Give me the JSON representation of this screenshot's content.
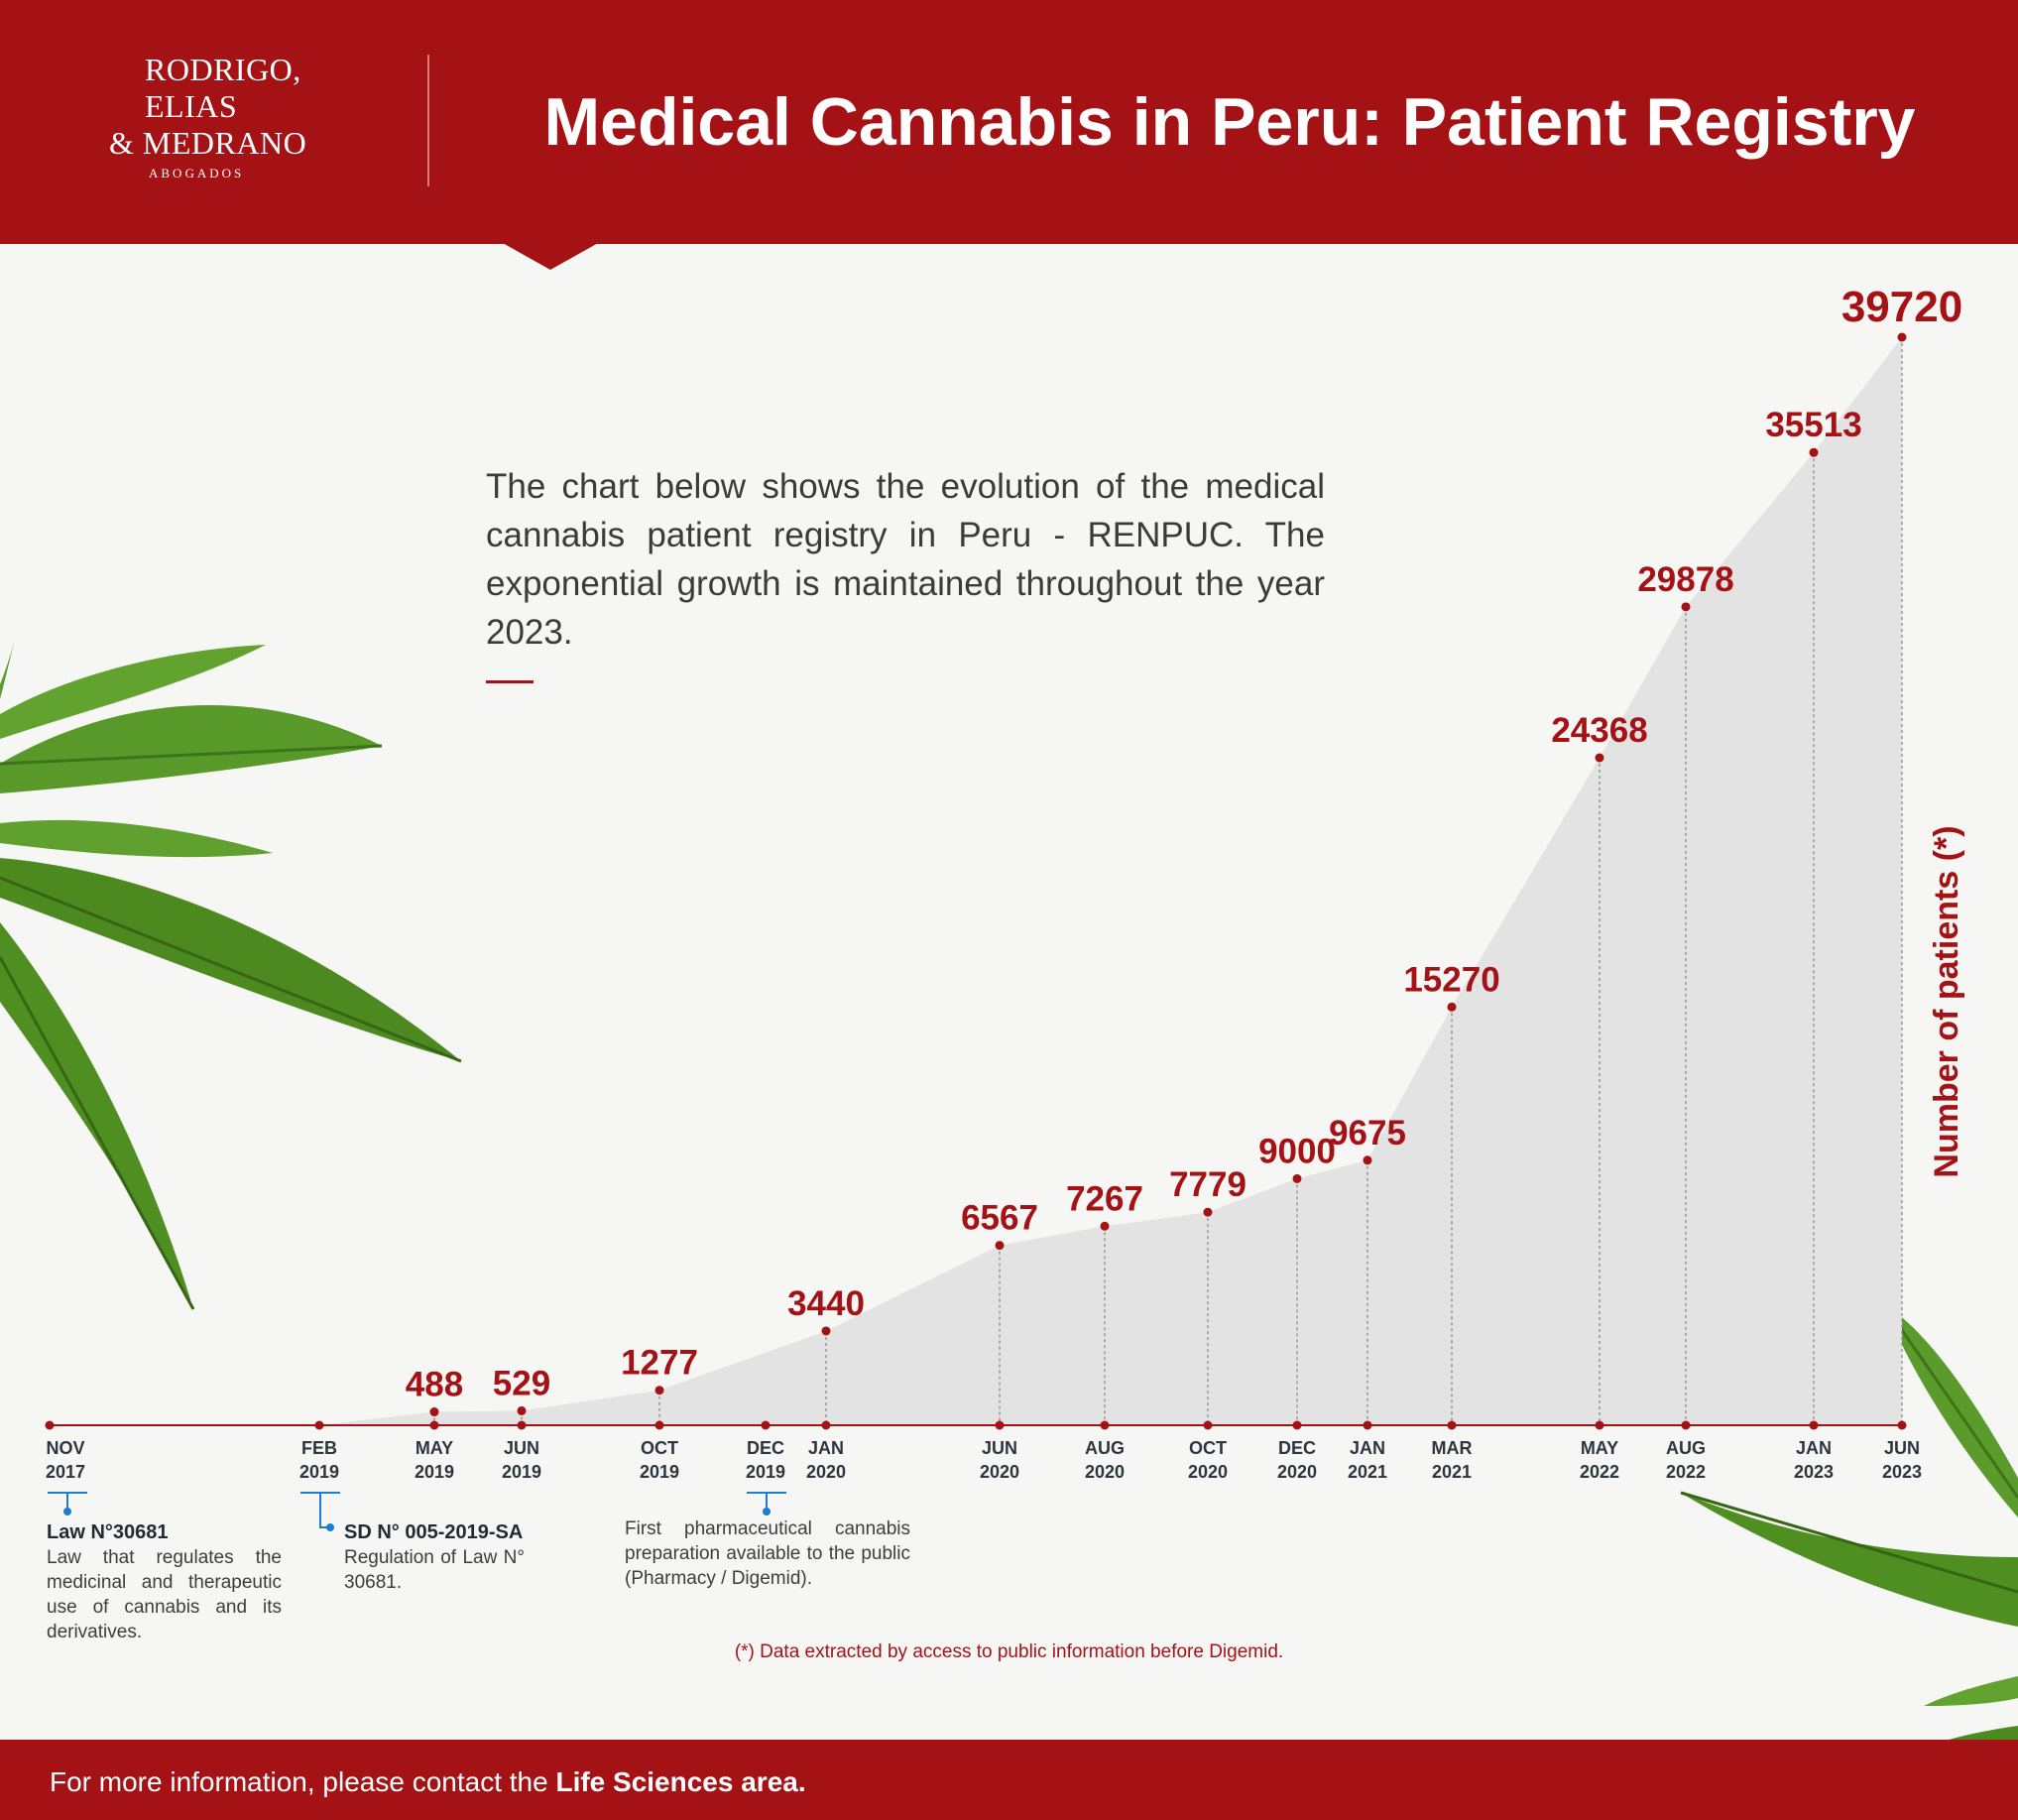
{
  "header": {
    "logo": {
      "line1": "RODRIGO,",
      "line2": "ELIAS",
      "line3": "& MEDRANO",
      "sub": "ABOGADOS"
    },
    "title": "Medical Cannabis in Peru: Patient Registry"
  },
  "intro_text": "The chart below shows the evolution of the medical cannabis patient registry in Peru - RENPUC. The exponential growth is maintained throughout the year 2023.",
  "colors": {
    "brand_red": "#a51215",
    "area_fill": "#e3e3e3",
    "event_blue": "#1a7fd0",
    "leaf_green": "#4f8f22"
  },
  "chart_data": {
    "type": "area",
    "ylabel": "Number of patients (*)",
    "x_axis_ticks": [
      {
        "month": "NOV",
        "year": "2017"
      },
      {
        "month": "FEB",
        "year": "2019"
      },
      {
        "month": "MAY",
        "year": "2019"
      },
      {
        "month": "JUN",
        "year": "2019"
      },
      {
        "month": "OCT",
        "year": "2019"
      },
      {
        "month": "DEC",
        "year": "2019"
      },
      {
        "month": "JAN",
        "year": "2020"
      },
      {
        "month": "JUN",
        "year": "2020"
      },
      {
        "month": "AUG",
        "year": "2020"
      },
      {
        "month": "OCT",
        "year": "2020"
      },
      {
        "month": "DEC",
        "year": "2020"
      },
      {
        "month": "JAN",
        "year": "2021"
      },
      {
        "month": "MAR",
        "year": "2021"
      },
      {
        "month": "MAY",
        "year": "2022"
      },
      {
        "month": "AUG",
        "year": "2022"
      },
      {
        "month": "JAN",
        "year": "2023"
      },
      {
        "month": "JUN",
        "year": "2023"
      }
    ],
    "series": [
      {
        "points": [
          {
            "date": "2019-02",
            "value": 0
          },
          {
            "date": "2019-05",
            "value": 488,
            "label": "488"
          },
          {
            "date": "2019-06",
            "value": 529,
            "label": "529"
          },
          {
            "date": "2019-10",
            "value": 1277,
            "label": "1277"
          },
          {
            "date": "2020-01",
            "value": 3440,
            "label": "3440"
          },
          {
            "date": "2020-06",
            "value": 6567,
            "label": "6567"
          },
          {
            "date": "2020-08",
            "value": 7267,
            "label": "7267"
          },
          {
            "date": "2020-10",
            "value": 7779,
            "label": "7779"
          },
          {
            "date": "2020-12",
            "value": 9000,
            "label": "9000"
          },
          {
            "date": "2021-01",
            "value": 9675,
            "label": "9675"
          },
          {
            "date": "2021-03",
            "value": 15270,
            "label": "15270"
          },
          {
            "date": "2022-05",
            "value": 24368,
            "label": "24368"
          },
          {
            "date": "2022-08",
            "value": 29878,
            "label": "29878"
          },
          {
            "date": "2023-01",
            "value": 35513,
            "label": "35513"
          },
          {
            "date": "2023-06",
            "value": 39720,
            "label": "39720"
          }
        ]
      }
    ],
    "annotations": [
      {
        "date": "NOV 2017",
        "title": "Law N°30681",
        "text": "Law that regulates the medicinal and therapeutic use of cannabis and its derivatives."
      },
      {
        "date": "FEB 2019",
        "title": "SD N° 005-2019-SA",
        "text": "Regulation of Law N° 30681."
      },
      {
        "date": "DEC 2019",
        "title": "",
        "text": "First pharmaceutical cannabis preparation available to the public (Pharmacy / Digemid)."
      }
    ],
    "note": "(*) Data extracted by access to public information before Digemid."
  },
  "footer": {
    "text_plain": "For more information, please contact the ",
    "text_bold": "Life Sciences area."
  }
}
